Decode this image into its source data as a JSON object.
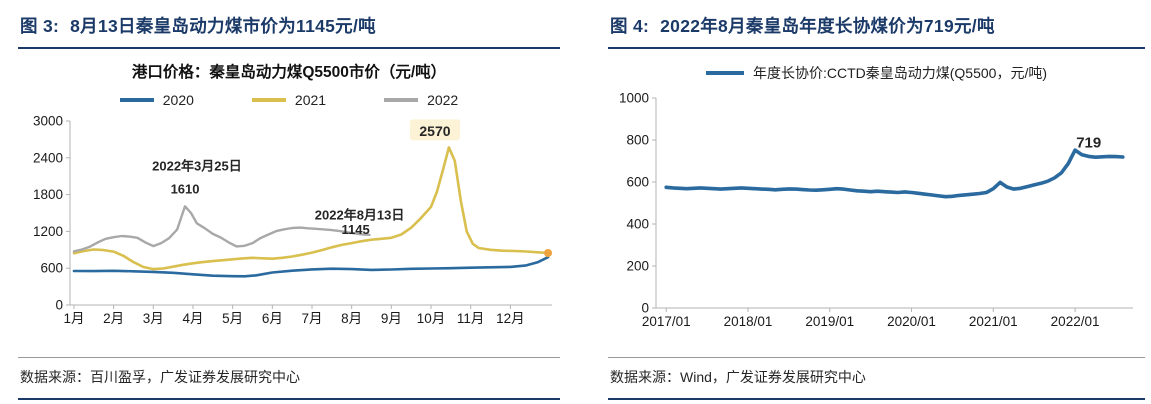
{
  "colors": {
    "navy": "#1b3a68",
    "blue": "#2a6a9f",
    "gold": "#d8bf4e",
    "gray": "#a8a8a8",
    "orange_dot": "#eda33f",
    "annotation_highlight": "#fcf2d5",
    "axis": "#b3b3b3"
  },
  "left_panel": {
    "figure_label": "图 3:",
    "title": "8月13日秦皇岛动力煤市价为1145元/吨",
    "source": "数据来源：百川盈孚，广发证券发展研究中心"
  },
  "right_panel": {
    "figure_label": "图 4:",
    "title": "2022年8月秦皇岛年度长协煤价为719元/吨",
    "source": "数据来源：Wind，广发证券发展研究中心"
  },
  "chart_data": [
    {
      "type": "line",
      "title": "港口价格：秦皇岛动力煤Q5500市价（元/吨）",
      "ylabel": "元/吨",
      "legend_position": "top",
      "grid": false,
      "xlim": [
        0.9,
        13.05
      ],
      "ylim": [
        0,
        3000
      ],
      "yticks": [
        0,
        600,
        1200,
        1800,
        2400,
        3000
      ],
      "xticks": [
        {
          "x": 1,
          "label": "1月"
        },
        {
          "x": 2,
          "label": "2月"
        },
        {
          "x": 3,
          "label": "3月"
        },
        {
          "x": 4,
          "label": "4月"
        },
        {
          "x": 5,
          "label": "5月"
        },
        {
          "x": 6,
          "label": "6月"
        },
        {
          "x": 7,
          "label": "7月"
        },
        {
          "x": 8,
          "label": "8月"
        },
        {
          "x": 9,
          "label": "9月"
        },
        {
          "x": 10,
          "label": "10月"
        },
        {
          "x": 11,
          "label": "11月"
        },
        {
          "x": 12,
          "label": "12月"
        }
      ],
      "series": [
        {
          "name": "2020",
          "color": "#2a6a9f",
          "x": [
            1.0,
            1.5,
            2.0,
            2.5,
            3.0,
            3.5,
            4.0,
            4.5,
            5.0,
            5.3,
            5.6,
            6.0,
            6.5,
            7.0,
            7.5,
            8.0,
            8.5,
            9.0,
            9.5,
            10.0,
            10.5,
            11.0,
            11.5,
            12.0,
            12.4,
            12.7,
            12.95
          ],
          "y": [
            555,
            552,
            558,
            550,
            540,
            525,
            500,
            478,
            470,
            468,
            485,
            530,
            560,
            580,
            592,
            585,
            572,
            578,
            590,
            595,
            600,
            608,
            615,
            622,
            645,
            700,
            780
          ]
        },
        {
          "name": "2021",
          "color": "#d8bf4e",
          "end_dot": "#eda33f",
          "x": [
            1.0,
            1.25,
            1.5,
            1.75,
            2.0,
            2.25,
            2.5,
            2.75,
            3.0,
            3.25,
            3.5,
            3.75,
            4.0,
            4.25,
            4.5,
            4.75,
            5.0,
            5.25,
            5.5,
            5.75,
            6.0,
            6.25,
            6.5,
            6.75,
            7.0,
            7.25,
            7.5,
            7.75,
            8.0,
            8.25,
            8.5,
            8.75,
            9.0,
            9.25,
            9.5,
            9.75,
            10.0,
            10.15,
            10.3,
            10.45,
            10.6,
            10.75,
            10.9,
            11.05,
            11.2,
            11.5,
            11.8,
            12.1,
            12.4,
            12.7,
            12.95
          ],
          "y": [
            845,
            880,
            905,
            895,
            870,
            800,
            700,
            620,
            585,
            595,
            625,
            655,
            680,
            700,
            715,
            730,
            745,
            760,
            770,
            762,
            755,
            770,
            790,
            820,
            855,
            895,
            940,
            980,
            1010,
            1040,
            1065,
            1080,
            1095,
            1150,
            1260,
            1420,
            1600,
            1850,
            2200,
            2570,
            2350,
            1700,
            1200,
            1000,
            930,
            900,
            885,
            880,
            872,
            860,
            848
          ]
        },
        {
          "name": "2022",
          "color": "#a8a8a8",
          "x": [
            1.0,
            1.2,
            1.4,
            1.6,
            1.8,
            2.0,
            2.2,
            2.4,
            2.6,
            2.8,
            3.0,
            3.2,
            3.4,
            3.6,
            3.8,
            3.95,
            4.1,
            4.3,
            4.5,
            4.7,
            4.9,
            5.1,
            5.3,
            5.5,
            5.7,
            5.9,
            6.1,
            6.3,
            6.5,
            6.7,
            6.9,
            7.1,
            7.3,
            7.5,
            7.7,
            7.9,
            8.1,
            8.3,
            8.45
          ],
          "y": [
            875,
            905,
            950,
            1020,
            1080,
            1105,
            1125,
            1115,
            1095,
            1020,
            960,
            1010,
            1090,
            1230,
            1610,
            1500,
            1330,
            1250,
            1160,
            1100,
            1020,
            955,
            965,
            1010,
            1090,
            1150,
            1205,
            1235,
            1255,
            1262,
            1250,
            1242,
            1232,
            1222,
            1205,
            1185,
            1165,
            1150,
            1145
          ]
        }
      ],
      "annotations": [
        {
          "text": "2022年3月25日",
          "x": 4.1,
          "y": 2270,
          "size": 13
        },
        {
          "text": "1610",
          "x": 3.8,
          "y": 1890,
          "size": 13
        },
        {
          "text": "2022年8月13日",
          "x": 8.2,
          "y": 1470,
          "size": 13
        },
        {
          "text": "1145",
          "x": 8.1,
          "y": 1230,
          "size": 13
        },
        {
          "text": "2570",
          "x": 10.1,
          "y": 2830,
          "size": 14,
          "highlight": "#fcf2d5"
        }
      ]
    },
    {
      "type": "line",
      "title": "",
      "x_note": "x = months since 2017/01",
      "grid": false,
      "xlim": [
        -1.5,
        68.5
      ],
      "ylim": [
        0,
        1000
      ],
      "yticks": [
        0,
        200,
        400,
        600,
        800,
        1000
      ],
      "xticks": [
        {
          "x": 0,
          "label": "2017/01"
        },
        {
          "x": 12,
          "label": "2018/01"
        },
        {
          "x": 24,
          "label": "2019/01"
        },
        {
          "x": 36,
          "label": "2020/01"
        },
        {
          "x": 48,
          "label": "2021/01"
        },
        {
          "x": 60,
          "label": "2022/01"
        }
      ],
      "series": [
        {
          "name": "年度长协价:CCTD秦皇岛动力煤(Q5500，元/吨)",
          "color": "#2a6a9f",
          "y": [
            575,
            572,
            570,
            568,
            570,
            572,
            570,
            568,
            566,
            568,
            570,
            572,
            570,
            568,
            566,
            565,
            563,
            565,
            567,
            566,
            564,
            562,
            561,
            563,
            565,
            568,
            566,
            562,
            558,
            556,
            554,
            556,
            554,
            552,
            550,
            553,
            550,
            546,
            542,
            538,
            534,
            530,
            532,
            536,
            539,
            542,
            545,
            550,
            568,
            598,
            576,
            566,
            570,
            578,
            586,
            594,
            604,
            620,
            644,
            688,
            752,
            730,
            722,
            718,
            720,
            722,
            721,
            719
          ]
        }
      ],
      "annotations": [
        {
          "text": "719",
          "x": 62,
          "y": 785,
          "size": 15
        }
      ]
    }
  ]
}
